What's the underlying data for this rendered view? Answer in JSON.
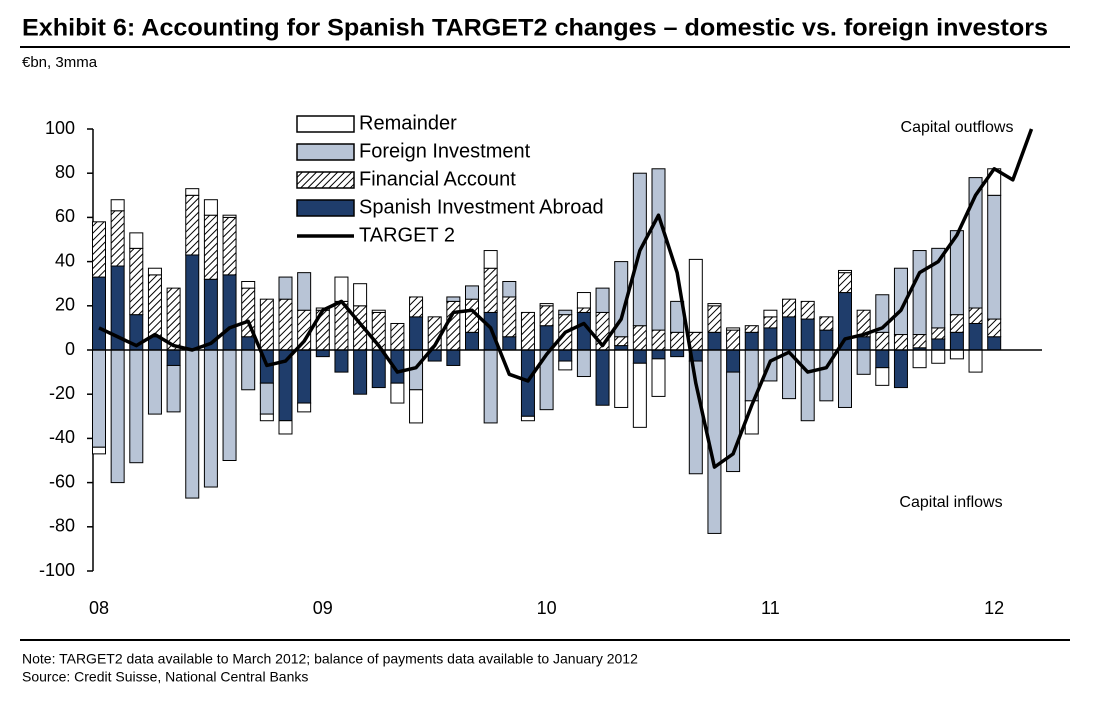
{
  "chart_data": {
    "type": "bar",
    "title": "Exhibit 6: Accounting for Spanish TARGET2 changes – domestic vs. foreign investors",
    "subtitle": "€bn, 3mma",
    "categories": [
      "08",
      null,
      null,
      null,
      null,
      null,
      null,
      null,
      null,
      null,
      null,
      null,
      "09",
      null,
      null,
      null,
      null,
      null,
      null,
      null,
      null,
      null,
      null,
      null,
      "10",
      null,
      null,
      null,
      null,
      null,
      null,
      null,
      null,
      null,
      null,
      null,
      "11",
      null,
      null,
      null,
      null,
      null,
      null,
      null,
      null,
      null,
      null,
      null,
      "12",
      null,
      null
    ],
    "series": [
      {
        "name": "Spanish Investment Abroad",
        "color": "#1f3d6b",
        "values": [
          33,
          38,
          16,
          6,
          -7,
          43,
          32,
          34,
          6,
          -15,
          -32,
          -24,
          -3,
          -10,
          -20,
          -17,
          -15,
          15,
          -5,
          -7,
          8,
          17,
          6,
          -30,
          11,
          -5,
          17,
          -25,
          2,
          -6,
          -4,
          -3,
          -5,
          8,
          -10,
          8,
          10,
          15,
          14,
          9,
          26,
          6,
          -8,
          -17,
          1,
          5,
          8,
          12,
          6,
          null,
          null
        ]
      },
      {
        "name": "Financial Account",
        "color": "#000000",
        "hatch": true,
        "values": [
          25,
          25,
          30,
          28,
          28,
          27,
          29,
          26,
          22,
          23,
          23,
          18,
          18,
          22,
          20,
          17,
          12,
          9,
          15,
          22,
          15,
          20,
          18,
          17,
          9,
          16,
          2,
          17,
          4,
          11,
          9,
          8,
          8,
          12,
          9,
          3,
          5,
          8,
          8,
          6,
          9,
          12,
          8,
          7,
          6,
          5,
          8,
          7,
          8,
          null,
          null
        ]
      },
      {
        "name": "Foreign Investment",
        "color": "#b8c4d6",
        "values": [
          -44,
          -60,
          -51,
          -29,
          -21,
          -67,
          -62,
          -50,
          -18,
          -14,
          10,
          17,
          0,
          0,
          0,
          0,
          0,
          -18,
          0,
          2,
          6,
          -33,
          7,
          0,
          -27,
          2,
          -12,
          11,
          34,
          69,
          73,
          14,
          -51,
          -83,
          -45,
          -23,
          -14,
          -22,
          -32,
          -23,
          -26,
          -11,
          17,
          30,
          38,
          36,
          38,
          59,
          56,
          null,
          null
        ]
      },
      {
        "name": "Remainder",
        "color": "#ffffff",
        "values": [
          -3,
          5,
          7,
          3,
          0,
          3,
          7,
          1,
          3,
          -3,
          -6,
          -4,
          1,
          11,
          10,
          1,
          -9,
          -15,
          0,
          0,
          0,
          8,
          0,
          -2,
          1,
          -4,
          7,
          0,
          -26,
          -29,
          -17,
          0,
          33,
          1,
          1,
          -15,
          3,
          0,
          0,
          0,
          1,
          0,
          -8,
          0,
          -8,
          -6,
          -4,
          -10,
          12,
          null,
          null
        ]
      },
      {
        "name": "TARGET 2",
        "color": "#000000",
        "line": true,
        "values": [
          10,
          6,
          2,
          7,
          2,
          0,
          3,
          10,
          13,
          -7,
          -5,
          4,
          18,
          22,
          12,
          2,
          -10,
          -8,
          2,
          17,
          18,
          10,
          -11,
          -14,
          -2,
          8,
          12,
          2,
          14,
          45,
          61,
          35,
          -15,
          -53,
          -47,
          -25,
          -5,
          -1,
          -10,
          -8,
          5,
          7,
          10,
          18,
          35,
          40,
          52,
          70,
          82,
          77,
          100
        ]
      }
    ],
    "ylim": [
      -100,
      100
    ],
    "yticks": [
      -100,
      -80,
      -60,
      -40,
      -20,
      0,
      20,
      40,
      60,
      80,
      100
    ],
    "annotations": [
      "Capital outflows",
      "Capital inflows"
    ],
    "note": "Note: TARGET2 data available  to March 2012;  balance of payments  data available to January  2012",
    "source": "Source:  Credit Suisse,  National Central Banks"
  }
}
